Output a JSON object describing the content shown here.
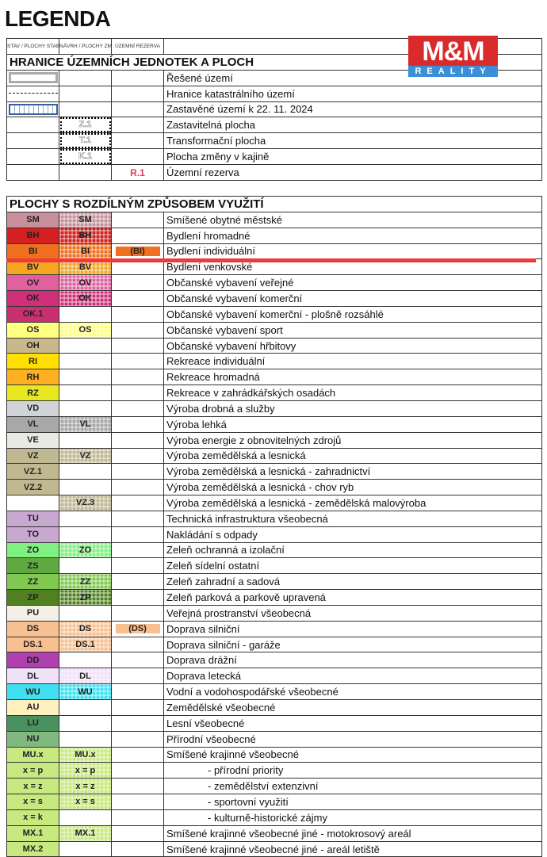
{
  "title": "LEGENDA",
  "logo": {
    "text_top": "M&M",
    "text_bottom": "REALITY",
    "colors": {
      "red": "#d92b2b",
      "blue": "#3a8fd8"
    }
  },
  "columns": [
    "STAV / PLOCHY STABILIZOVANÉ",
    "NÁVRH / PLOCHY ZMĚN",
    "ÚZEMNÍ REZERVA"
  ],
  "boundaries": {
    "heading": "HRANICE ÚZEMNÍCH JEDNOTEK A PLOCH",
    "rows": [
      {
        "symbol": "border-icon",
        "label": "Řešené území"
      },
      {
        "symbol": "dash-dot-line-icon",
        "label": "Hranice katastrálního území"
      },
      {
        "symbol": "built-area-icon",
        "label": "Zastavěné území k 22. 11. 2024"
      },
      {
        "proposal": "Z.1",
        "label": "Zastavitelná plocha"
      },
      {
        "proposal": "T.1",
        "label": "Transformační plocha"
      },
      {
        "proposal": "K.1",
        "label": "Plocha změny v kajině"
      },
      {
        "reserve": "R.1",
        "label": "Územní rezerva"
      }
    ]
  },
  "landuse": {
    "heading": "PLOCHY S ROZDÍLNÝM ZPŮSOBEM VYUŽITÍ",
    "rows": [
      {
        "state": "SM",
        "proposal": "SM",
        "color": "#c8909a",
        "label": "Smíšené obytné městské"
      },
      {
        "state": "BH",
        "proposal": "BH",
        "color": "#d42020",
        "label": "Bydlení hromadné"
      },
      {
        "state": "BI",
        "proposal": "BI",
        "reserve": "(BI)",
        "color": "#f07020",
        "label": "Bydlení individuální"
      },
      {
        "state": "BV",
        "proposal": "BV",
        "color": "#f5a623",
        "label": "Bydlení venkovské"
      },
      {
        "state": "OV",
        "proposal": "OV",
        "color": "#e060a0",
        "label": "Občanské vybavení veřejné"
      },
      {
        "state": "OK",
        "proposal": "OK",
        "color": "#d0307a",
        "label": "Občanské vybavení komerční"
      },
      {
        "state": "OK.1",
        "color": "#c83070",
        "label": "Občanské vybavení komerční - plošně rozsáhlé"
      },
      {
        "state": "OS",
        "proposal": "OS",
        "color": "#ffff80",
        "label": "Občanské vybavení sport"
      },
      {
        "state": "OH",
        "color": "#c8b88a",
        "label": "Občanské vybavení hřbitovy"
      },
      {
        "state": "RI",
        "color": "#ffe000",
        "label": "Rekreace individuální"
      },
      {
        "state": "RH",
        "color": "#ffb020",
        "label": "Rekreace hromadná"
      },
      {
        "state": "RZ",
        "color": "#e8e820",
        "label": "Rekreace v zahrádkářských osadách"
      },
      {
        "state": "VD",
        "color": "#d0d4d8",
        "label": "Výroba drobná a služby"
      },
      {
        "state": "VL",
        "proposal": "VL",
        "color": "#a8a8a8",
        "label": "Výroba lehká"
      },
      {
        "state": "VE",
        "color": "#e8e8e4",
        "label": "Výroba energie z obnovitelných zdrojů"
      },
      {
        "state": "VZ",
        "proposal": "VZ",
        "color": "#c0b890",
        "label": "Výroba zemědělská a lesnická"
      },
      {
        "state": "VZ.1",
        "color": "#c0b890",
        "label": "Výroba zemědělská a lesnická - zahradnictví"
      },
      {
        "state": "VZ.2",
        "color": "#c0b890",
        "label": "Výroba zemědělská a lesnická - chov ryb"
      },
      {
        "proposal": "VZ.3",
        "color": "#c0b890",
        "label": "Výroba zemědělská a lesnická - zemědělská malovýroba"
      },
      {
        "state": "TU",
        "color": "#c8a8d0",
        "label": "Technická infrastruktura všeobecná"
      },
      {
        "state": "TO",
        "color": "#c8a8d0",
        "label": "Nakládání s odpady"
      },
      {
        "state": "ZO",
        "proposal": "ZO",
        "color": "#80f080",
        "label": "Zeleň ochranná a izolační"
      },
      {
        "state": "ZS",
        "color": "#60a840",
        "label": "Zeleň sídelní ostatní"
      },
      {
        "state": "ZZ",
        "proposal": "ZZ",
        "color": "#80c850",
        "label": "Zeleň zahradní a sadová"
      },
      {
        "state": "ZP",
        "proposal": "ZP",
        "color": "#508020",
        "label": "Zeleň parková a parkově upravená"
      },
      {
        "state": "PU",
        "color": "#f4f0e8",
        "label": "Veřejná prostranství všeobecná"
      },
      {
        "state": "DS",
        "proposal": "DS",
        "reserve": "(DS)",
        "color": "#f8c090",
        "label": "Doprava silniční"
      },
      {
        "state": "DS.1",
        "proposal": "DS.1",
        "color": "#f8c090",
        "label": "Doprava silniční - garáže"
      },
      {
        "state": "DD",
        "color": "#b040b0",
        "label": "Doprava drážní"
      },
      {
        "state": "DL",
        "proposal": "DL",
        "color": "#f0e0f8",
        "label": "Doprava letecká"
      },
      {
        "state": "WU",
        "proposal": "WU",
        "color": "#40e0f0",
        "label": "Vodní a vodohospodářské všeobecné"
      },
      {
        "state": "AU",
        "color": "#fff0c0",
        "label": "Zemědělské všeobecné"
      },
      {
        "state": "LU",
        "color": "#4a9060",
        "label": "Lesní všeobecné"
      },
      {
        "state": "NU",
        "color": "#80b880",
        "label": "Přírodní všeobecné"
      },
      {
        "state": "MU.x",
        "proposal": "MU.x",
        "color": "#c8e880",
        "label": "Smíšené krajinné všeobecné"
      },
      {
        "state": "x = p",
        "proposal": "x = p",
        "color": "#c8e880",
        "label": "- přírodní priority",
        "indent": true
      },
      {
        "state": "x = z",
        "proposal": "x = z",
        "color": "#c8e880",
        "label": "- zemědělství extenzivní",
        "indent": true
      },
      {
        "state": "x = s",
        "proposal": "x = s",
        "color": "#c8e880",
        "label": "- sportovní využití",
        "indent": true
      },
      {
        "state": "x = k",
        "color": "#c8e880",
        "label": "- kulturně-historické zájmy",
        "indent": true
      },
      {
        "state": "MX.1",
        "proposal": "MX.1",
        "color": "#c8e880",
        "label": "Smíšené krajinné všeobecné jiné - motokrosový areál"
      },
      {
        "state": "MX.2",
        "color": "#c8e880",
        "label": "Smíšené krajinné všeobecné jiné - areál letiště"
      }
    ]
  },
  "overlay_line_color": "#f03a3a"
}
